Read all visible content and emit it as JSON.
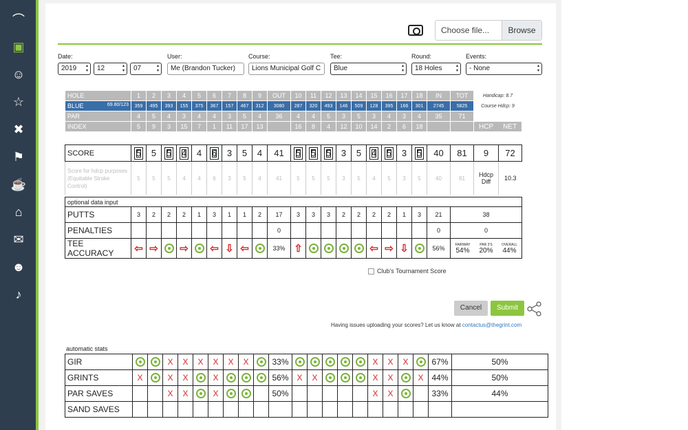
{
  "sidebar": {
    "icons": [
      "stats-icon",
      "scorecard-icon",
      "friends-icon",
      "leaderboard-icon",
      "clubs-icon",
      "course-icon",
      "trophy-icon",
      "community-icon",
      "messages-icon",
      "invite-icon",
      "notifications-icon"
    ]
  },
  "upload": {
    "choose_label": "Choose file...",
    "browse_label": "Browse"
  },
  "form": {
    "date_label": "Date:",
    "year": "2019",
    "month": "12",
    "day": "07",
    "user_label": "User:",
    "user_value": "Me (Brandon Tucker)",
    "course_label": "Course:",
    "course_value": "Lions Municipal Golf C",
    "tee_label": "Tee:",
    "tee_value": "Blue",
    "round_label": "Round:",
    "round_value": "18 Holes",
    "events_label": "Events:",
    "events_value": "- None"
  },
  "scorecard": {
    "hole_label": "HOLE",
    "holes_front": [
      "1",
      "2",
      "3",
      "4",
      "5",
      "6",
      "7",
      "8",
      "9"
    ],
    "out_label": "OUT",
    "holes_back": [
      "10",
      "11",
      "12",
      "13",
      "14",
      "15",
      "16",
      "17",
      "18"
    ],
    "in_label": "IN",
    "tot_label": "TOT",
    "handicap_label": "Handicap: 8.7",
    "course_hdcp_label": "Course Hdcp: 9",
    "tee_name": "BLUE",
    "tee_rating": "69.80/123",
    "yards_front": [
      "359",
      "495",
      "393",
      "155",
      "375",
      "367",
      "157",
      "467",
      "312"
    ],
    "yards_out": "3080",
    "yards_back": [
      "287",
      "320",
      "493",
      "146",
      "509",
      "128",
      "395",
      "166",
      "301"
    ],
    "yards_in": "2745",
    "yards_tot": "5825",
    "par_label": "PAR",
    "par_front": [
      "4",
      "5",
      "4",
      "3",
      "4",
      "4",
      "3",
      "5",
      "4"
    ],
    "par_out": "36",
    "par_back": [
      "4",
      "4",
      "5",
      "3",
      "5",
      "3",
      "4",
      "3",
      "4"
    ],
    "par_in": "35",
    "par_tot": "71",
    "index_label": "INDEX",
    "index_front": [
      "5",
      "9",
      "3",
      "15",
      "7",
      "1",
      "11",
      "17",
      "13"
    ],
    "index_back": [
      "16",
      "8",
      "4",
      "12",
      "10",
      "14",
      "2",
      "6",
      "18"
    ],
    "hcp_label": "HCP",
    "net_label": "NET",
    "score_label": "SCORE",
    "score_front": [
      "5",
      "5",
      "5",
      "4",
      "4",
      "6",
      "3",
      "5",
      "4"
    ],
    "score_out": "41",
    "score_back": [
      "5",
      "5",
      "5",
      "3",
      "5",
      "4",
      "5",
      "3",
      "5"
    ],
    "score_in": "40",
    "score_tot": "81",
    "score_hcp": "9",
    "score_net": "72",
    "adj_label": "Score for hdcp purposes (Equitable Stroke Control)",
    "adj_front": [
      "5",
      "5",
      "5",
      "4",
      "4",
      "6",
      "3",
      "5",
      "4"
    ],
    "adj_out": "41",
    "adj_back": [
      "5",
      "5",
      "5",
      "3",
      "5",
      "4",
      "5",
      "3",
      "5"
    ],
    "adj_in": "40",
    "adj_tot": "81",
    "hdcp_diff_label": "Hdcp Diff",
    "hdcp_diff": "10.3"
  },
  "optional": {
    "title": "optional data input",
    "putts_label": "PUTTS",
    "putts_front": [
      "3",
      "2",
      "2",
      "2",
      "1",
      "3",
      "1",
      "1",
      "2"
    ],
    "putts_out": "17",
    "putts_back": [
      "3",
      "3",
      "3",
      "2",
      "2",
      "2",
      "2",
      "1",
      "3"
    ],
    "putts_in": "21",
    "putts_tot": "38",
    "penalties_label": "PENALTIES",
    "penalties_out": "0",
    "penalties_in": "0",
    "penalties_tot": "0",
    "tee_label": "TEE ACCURACY",
    "tee_front": [
      "left",
      "right",
      "hit",
      "right",
      "hit",
      "left",
      "down",
      "left",
      "hit"
    ],
    "tee_out": "33%",
    "tee_back": [
      "up",
      "hit",
      "hit",
      "hit",
      "hit",
      "left",
      "right",
      "down",
      "hit"
    ],
    "tee_in": "56%",
    "fairway_label": "FAIRWAY",
    "fairway_value": "54%",
    "par3_label": "PAR 3'S",
    "par3_value": "20%",
    "overall_label": "OVERALL",
    "overall_value": "44%"
  },
  "tournament_label": "Club's Tournament Score",
  "actions": {
    "cancel": "Cancel",
    "submit": "Submit"
  },
  "help": {
    "text": "Having issues uploading your scores? Let us know at ",
    "email": "contactus@thegrint.com"
  },
  "auto_stats": {
    "title": "automatic stats",
    "rows": [
      {
        "label": "GIR",
        "front": [
          "o",
          "o",
          "x",
          "x",
          "x",
          "x",
          "x",
          "x",
          "o"
        ],
        "out": "33%",
        "back": [
          "o",
          "o",
          "o",
          "o",
          "o",
          "x",
          "x",
          "x",
          "o"
        ],
        "in": "67%",
        "tot": "50%"
      },
      {
        "label": "GRINTS",
        "front": [
          "x",
          "o",
          "x",
          "x",
          "o",
          "x",
          "o",
          "o",
          "o"
        ],
        "out": "56%",
        "back": [
          "x",
          "x",
          "o",
          "o",
          "o",
          "x",
          "x",
          "o",
          "x"
        ],
        "in": "44%",
        "tot": "50%"
      },
      {
        "label": "PAR SAVES",
        "front": [
          "",
          "",
          "x",
          "x",
          "o",
          "x",
          "o",
          "o",
          ""
        ],
        "out": "50%",
        "back": [
          "",
          "",
          "",
          "",
          "",
          "x",
          "x",
          "o",
          ""
        ],
        "in": "33%",
        "tot": "44%"
      },
      {
        "label": "SAND SAVES",
        "front": [
          "",
          "",
          "",
          "",
          "",
          "",
          "",
          "",
          ""
        ],
        "out": "",
        "back": [
          "",
          "",
          "",
          "",
          "",
          "",
          "",
          "",
          ""
        ],
        "in": "",
        "tot": ""
      }
    ]
  }
}
